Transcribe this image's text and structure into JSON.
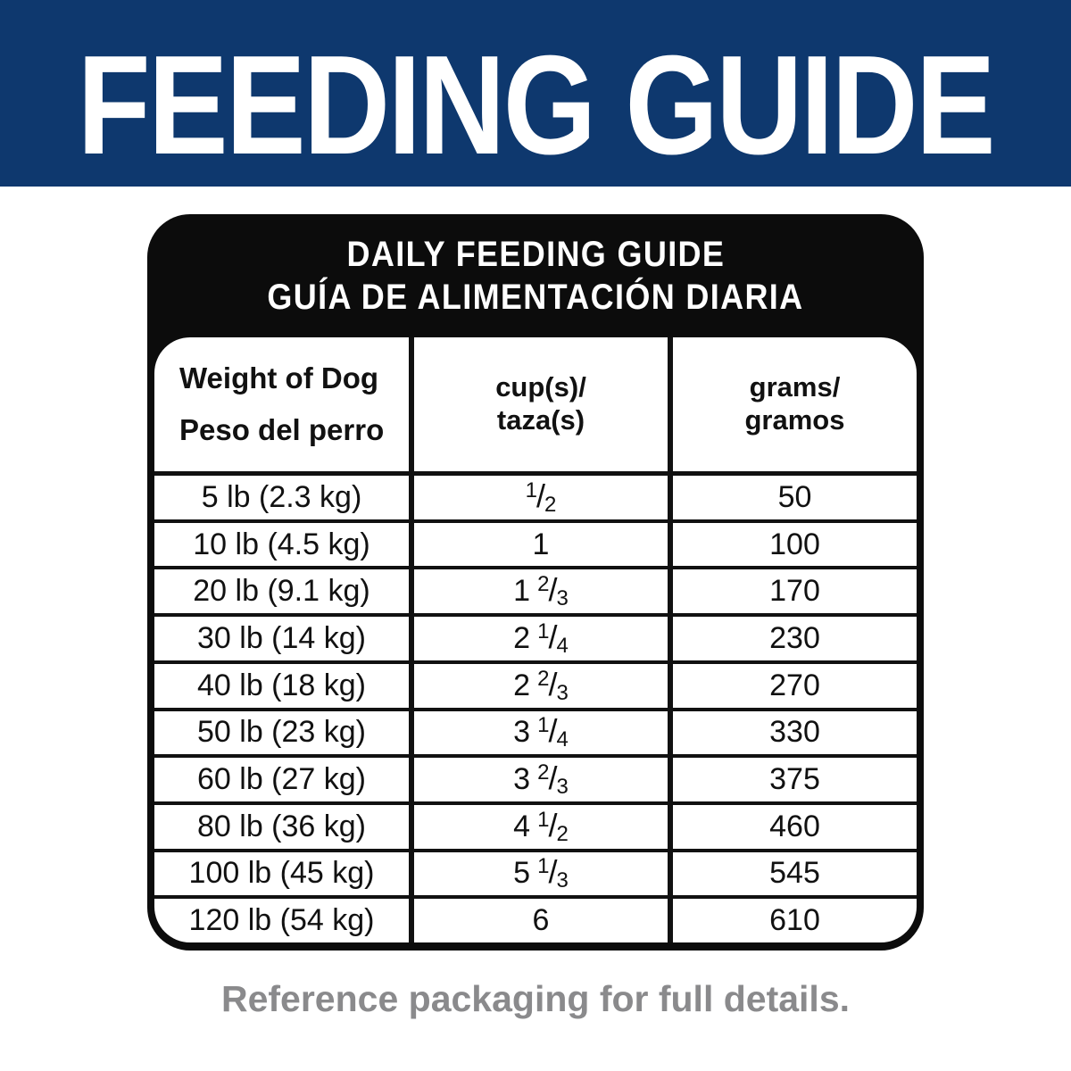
{
  "banner": {
    "title": "FEEDING GUIDE",
    "bg_color": "#0e386e",
    "text_color": "#ffffff"
  },
  "card": {
    "title_line1": "DAILY FEEDING GUIDE",
    "title_line2": "GUÍA DE ALIMENTACIÓN DIARIA",
    "bg_color": "#0c0c0c",
    "text_color": "#ffffff"
  },
  "table": {
    "line_color": "#111111",
    "columns": [
      {
        "label_line1": "Weight of Dog",
        "label_line2": "Peso del perro"
      },
      {
        "label_line1": "cup(s)/",
        "label_line2": "taza(s)"
      },
      {
        "label_line1": "grams/",
        "label_line2": "gramos"
      }
    ],
    "rows": [
      {
        "weight": "5 lb (2.3 kg)",
        "cups_whole": "",
        "cups_num": "1",
        "cups_den": "2",
        "grams": "50"
      },
      {
        "weight": "10 lb (4.5 kg)",
        "cups_whole": "1",
        "cups_num": "",
        "cups_den": "",
        "grams": "100"
      },
      {
        "weight": "20 lb (9.1 kg)",
        "cups_whole": "1",
        "cups_num": "2",
        "cups_den": "3",
        "grams": "170"
      },
      {
        "weight": "30 lb (14 kg)",
        "cups_whole": "2",
        "cups_num": "1",
        "cups_den": "4",
        "grams": "230"
      },
      {
        "weight": "40 lb (18 kg)",
        "cups_whole": "2",
        "cups_num": "2",
        "cups_den": "3",
        "grams": "270"
      },
      {
        "weight": "50 lb (23 kg)",
        "cups_whole": "3",
        "cups_num": "1",
        "cups_den": "4",
        "grams": "330"
      },
      {
        "weight": "60 lb (27 kg)",
        "cups_whole": "3",
        "cups_num": "2",
        "cups_den": "3",
        "grams": "375"
      },
      {
        "weight": "80 lb (36 kg)",
        "cups_whole": "4",
        "cups_num": "1",
        "cups_den": "2",
        "grams": "460"
      },
      {
        "weight": "100 lb (45 kg)",
        "cups_whole": "5",
        "cups_num": "1",
        "cups_den": "3",
        "grams": "545"
      },
      {
        "weight": "120 lb (54 kg)",
        "cups_whole": "6",
        "cups_num": "",
        "cups_den": "",
        "grams": "610"
      }
    ]
  },
  "footer": {
    "note": "Reference packaging for full details.",
    "color": "#8a8a8c"
  }
}
